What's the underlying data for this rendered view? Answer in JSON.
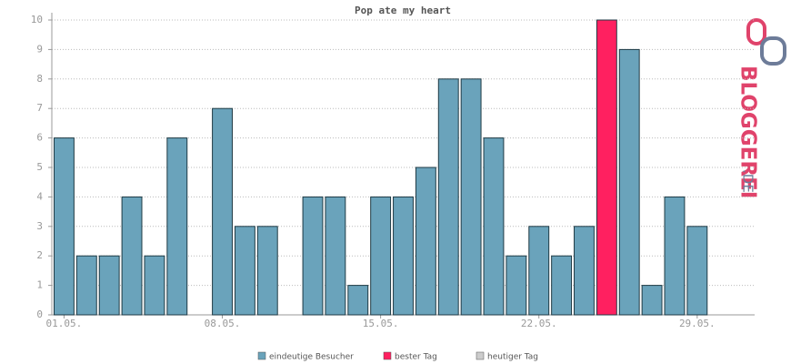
{
  "chart_data": {
    "type": "bar",
    "title": "Pop ate my heart",
    "categories": [
      "01.05.",
      null,
      null,
      null,
      null,
      null,
      null,
      "08.05.",
      null,
      null,
      null,
      null,
      null,
      null,
      "15.05.",
      null,
      null,
      null,
      null,
      null,
      null,
      "22.05.",
      null,
      null,
      null,
      null,
      null,
      null,
      "29.05.",
      null,
      null
    ],
    "series": [
      {
        "name": "eindeutige Besucher",
        "color": "#6aa3bb",
        "values": [
          6,
          2,
          2,
          4,
          2,
          6,
          0,
          7,
          3,
          3,
          0,
          4,
          4,
          1,
          4,
          4,
          5,
          8,
          8,
          6,
          2,
          3,
          2,
          3,
          null,
          9,
          1,
          4,
          3,
          0,
          0
        ]
      },
      {
        "name": "bester Tag",
        "color": "#ff2060",
        "values": [
          null,
          null,
          null,
          null,
          null,
          null,
          null,
          null,
          null,
          null,
          null,
          null,
          null,
          null,
          null,
          null,
          null,
          null,
          null,
          null,
          null,
          null,
          null,
          null,
          10,
          null,
          null,
          null,
          null,
          null,
          null
        ]
      },
      {
        "name": "heutiger Tag",
        "color": "#cccccc",
        "values": [
          null,
          null,
          null,
          null,
          null,
          null,
          null,
          null,
          null,
          null,
          null,
          null,
          null,
          null,
          null,
          null,
          null,
          null,
          null,
          null,
          null,
          null,
          null,
          null,
          null,
          null,
          null,
          null,
          null,
          null,
          null
        ]
      }
    ],
    "ylim": [
      0,
      10
    ],
    "yticks": [
      0,
      1,
      2,
      3,
      4,
      5,
      6,
      7,
      8,
      9,
      10
    ],
    "grid": true
  },
  "logo": {
    "name": "BLOGGEREI",
    "tld": ".DE"
  }
}
